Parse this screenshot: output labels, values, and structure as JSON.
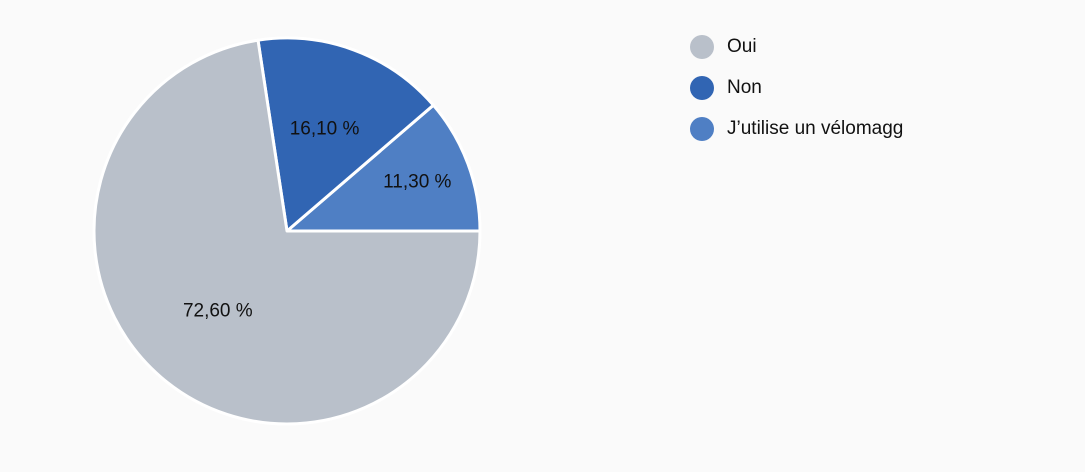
{
  "chart_data": {
    "type": "pie",
    "categories": [
      "Oui",
      "Non",
      "J’utilise un vélomagg"
    ],
    "values": [
      72.6,
      16.1,
      11.3
    ],
    "value_labels": [
      "72,60 %",
      "16,10 %",
      "11,30 %"
    ],
    "colors": [
      "#b9c0ca",
      "#3165b3",
      "#4f7fc4"
    ],
    "legend_position": "top-right",
    "start_angle": "3 o'clock",
    "direction": "counterclockwise",
    "slice_border_color": "#ffffff"
  }
}
